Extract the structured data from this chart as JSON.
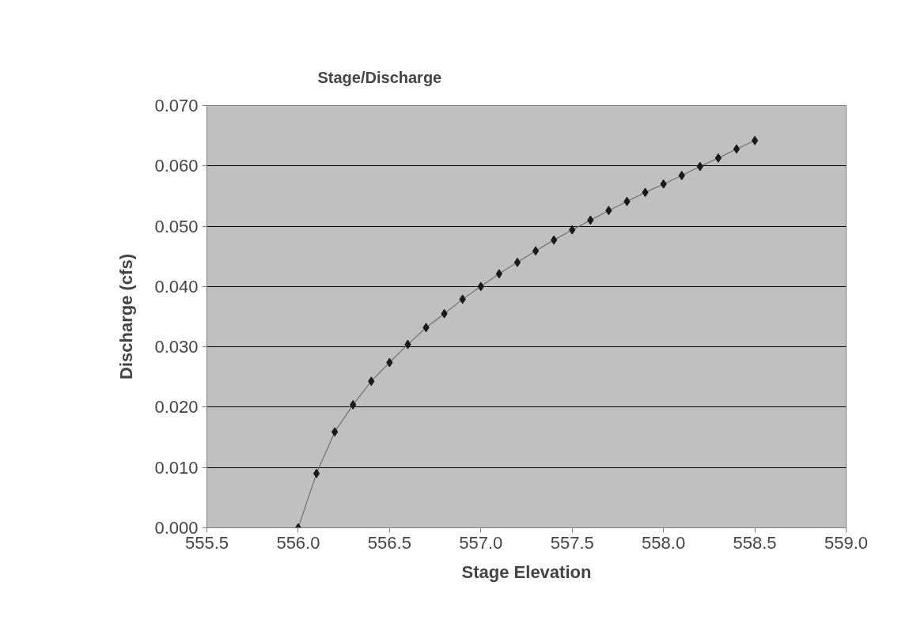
{
  "chart_data": {
    "type": "line",
    "title": "Stage/Discharge",
    "xlabel": "Stage Elevation",
    "ylabel": "Discharge (cfs)",
    "x": [
      556.0,
      556.1,
      556.2,
      556.3,
      556.4,
      556.5,
      556.6,
      556.7,
      556.8,
      556.9,
      557.0,
      557.1,
      557.2,
      557.3,
      557.4,
      557.5,
      557.6,
      557.7,
      557.8,
      557.9,
      558.0,
      558.1,
      558.2,
      558.3,
      558.4,
      558.5
    ],
    "series": [
      {
        "color": "#1a1a1a",
        "values": [
          0.0,
          0.009,
          0.0159,
          0.0204,
          0.0243,
          0.0274,
          0.0304,
          0.0332,
          0.0355,
          0.0379,
          0.04,
          0.0421,
          0.044,
          0.0459,
          0.0477,
          0.0494,
          0.051,
          0.0526,
          0.0541,
          0.0556,
          0.057,
          0.0584,
          0.0599,
          0.0613,
          0.0628,
          0.0642
        ]
      }
    ],
    "xlim": [
      555.5,
      559.0
    ],
    "xticks": [
      {
        "value": 555.5,
        "label": "555.5"
      },
      {
        "value": 556.0,
        "label": "556.0"
      },
      {
        "value": 556.5,
        "label": "556.5"
      },
      {
        "value": 557.0,
        "label": "557.0"
      },
      {
        "value": 557.5,
        "label": "557.5"
      },
      {
        "value": 558.0,
        "label": "558.0"
      },
      {
        "value": 558.5,
        "label": "558.5"
      },
      {
        "value": 559.0,
        "label": "559.0"
      }
    ],
    "ylim": [
      0.0,
      0.07
    ],
    "yticks": [
      {
        "value": 0.0,
        "label": "0.000"
      },
      {
        "value": 0.01,
        "label": "0.010"
      },
      {
        "value": 0.02,
        "label": "0.020"
      },
      {
        "value": 0.03,
        "label": "0.030"
      },
      {
        "value": 0.04,
        "label": "0.040"
      },
      {
        "value": 0.05,
        "label": "0.050"
      },
      {
        "value": 0.06,
        "label": "0.060"
      },
      {
        "value": 0.07,
        "label": "0.070"
      }
    ],
    "grid": "y",
    "marker": "diamond",
    "line_style": "solid"
  }
}
